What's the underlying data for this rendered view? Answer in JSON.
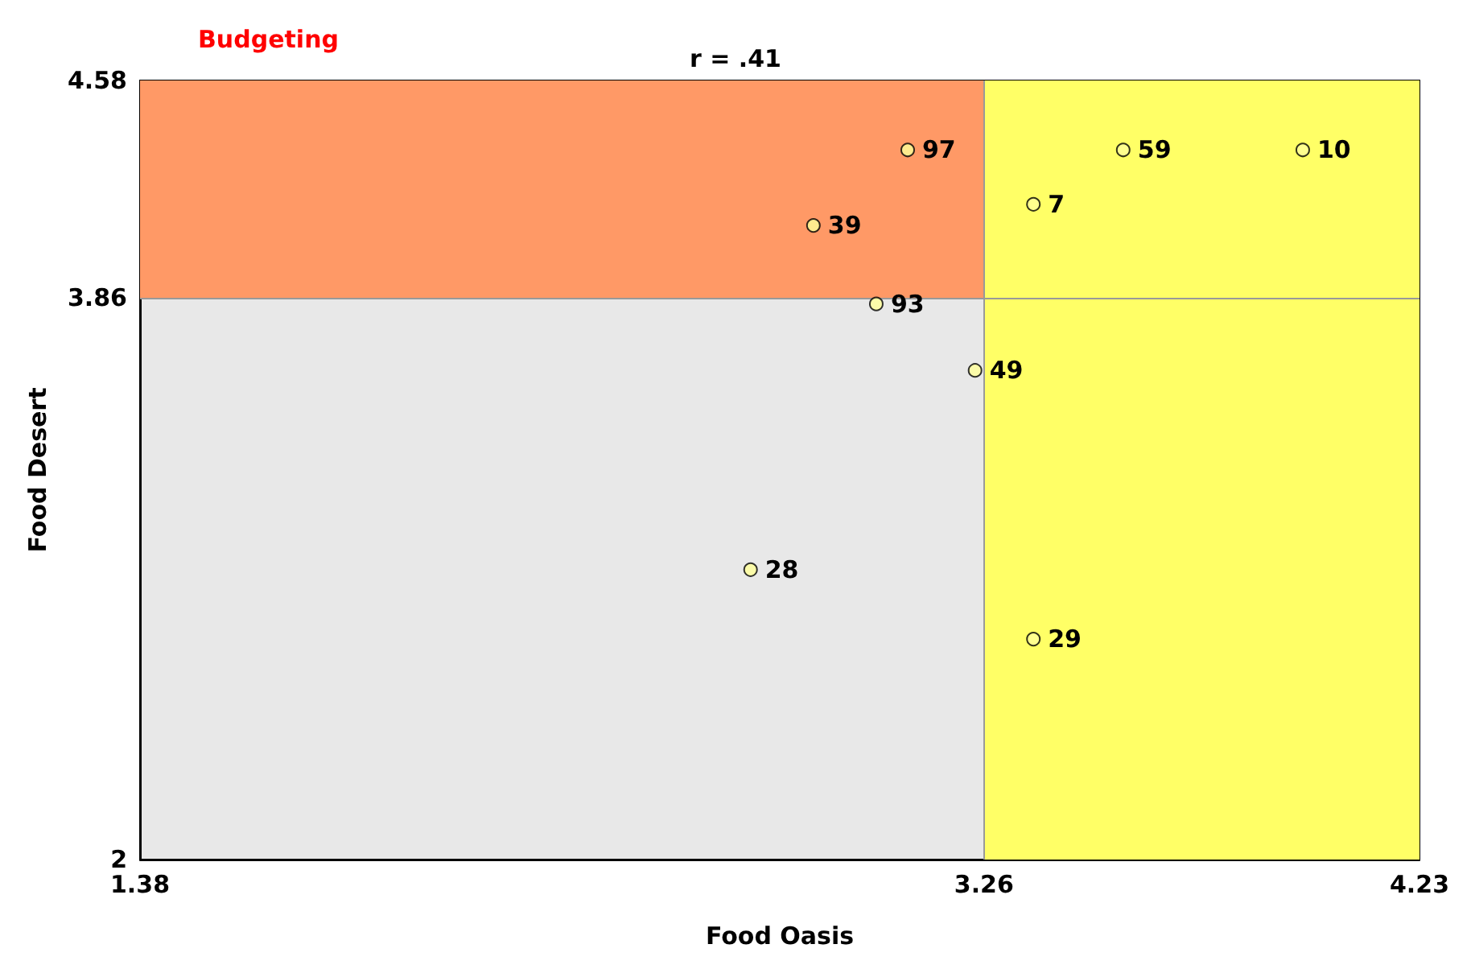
{
  "chart_data": {
    "type": "scatter",
    "title": "Budgeting",
    "subtitle": "r = .41",
    "xlabel": "Food Oasis",
    "ylabel": "Food Desert",
    "x": [
      3.09,
      2.88,
      3.02,
      3.24,
      2.74,
      3.37,
      3.37,
      3.57,
      3.97
    ],
    "series": [
      {
        "color": "#ffff99",
        "values": [
          4.35,
          4.1,
          3.84,
          3.62,
          2.96,
          2.73,
          4.17,
          4.35,
          4.35
        ]
      }
    ],
    "xlim": [
      1.38,
      4.23
    ],
    "xticks": [
      1.38,
      3.26,
      4.23
    ],
    "ylim": [
      2,
      4.58
    ],
    "yticks": [
      2,
      3.86,
      4.58
    ],
    "bands": [
      {
        "axis": "y",
        "from": 3.86,
        "to": 4.58,
        "color": "#ff9966"
      },
      {
        "axis": "x",
        "from": 3.26,
        "to": 4.23,
        "color": "#ffff66"
      }
    ],
    "ref_lines": [
      {
        "axis": "x",
        "value": 3.26,
        "color": "#999999"
      },
      {
        "axis": "y",
        "value": 3.86,
        "color": "#999999"
      }
    ],
    "annotations": [
      {
        "text": "97",
        "x": 3.09,
        "y": 4.35
      },
      {
        "text": "39",
        "x": 2.88,
        "y": 4.1
      },
      {
        "text": "93",
        "x": 3.02,
        "y": 3.84
      },
      {
        "text": "49",
        "x": 3.24,
        "y": 3.62
      },
      {
        "text": "28",
        "x": 2.74,
        "y": 2.96
      },
      {
        "text": "29",
        "x": 3.37,
        "y": 2.73
      },
      {
        "text": "7",
        "x": 3.37,
        "y": 4.17
      },
      {
        "text": "59",
        "x": 3.57,
        "y": 4.35
      },
      {
        "text": "10",
        "x": 3.97,
        "y": 4.35
      }
    ],
    "marker": "circle",
    "grid": false
  }
}
